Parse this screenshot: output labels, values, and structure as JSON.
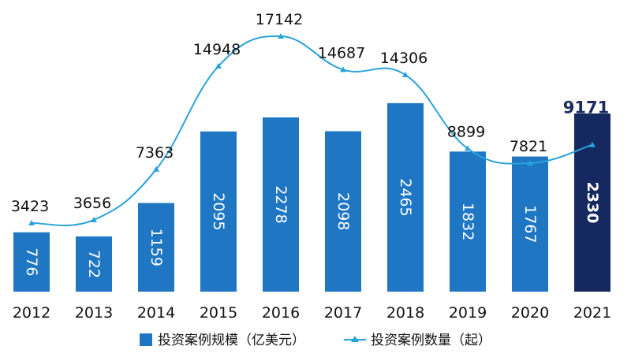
{
  "chart_data": {
    "type": "bar",
    "categories": [
      "2012",
      "2013",
      "2014",
      "2015",
      "2016",
      "2017",
      "2018",
      "2019",
      "2020",
      "2021"
    ],
    "series": [
      {
        "name": "投资案例规模（亿美元）",
        "kind": "bar",
        "values": [
          776,
          722,
          1159,
          2095,
          2278,
          2098,
          2465,
          1832,
          1767,
          2330
        ],
        "color": "#1f77c4",
        "highlight_color": "#152860"
      },
      {
        "name": "投资案例数量（起）",
        "kind": "line",
        "values": [
          3423,
          3656,
          7363,
          14948,
          17142,
          14687,
          14306,
          8899,
          7821,
          9171
        ],
        "color": "#29a3dc"
      }
    ],
    "highlight_index": 9,
    "bar_ylim": [
      0,
      3000
    ],
    "line_ylim": [
      0,
      20000
    ],
    "legend_position": "bottom",
    "grid": false
  }
}
